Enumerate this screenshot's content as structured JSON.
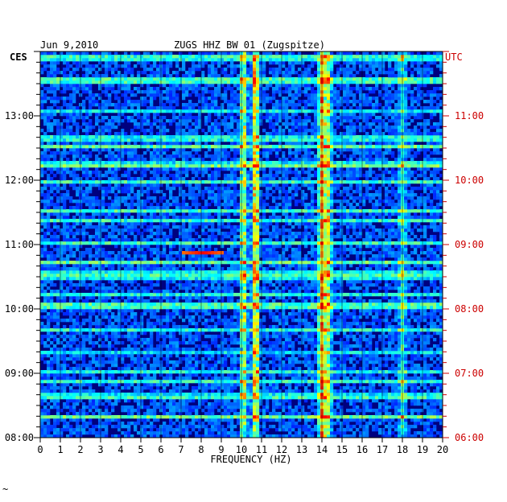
{
  "chart_data": {
    "type": "heatmap",
    "title": "ZUGS HHZ BW 01 (Zugspitze)",
    "date": "Jun 9,2010",
    "xlabel": "FREQUENCY (HZ)",
    "xlim": [
      0,
      20
    ],
    "x_ticks": [
      0,
      1,
      2,
      3,
      4,
      5,
      6,
      7,
      8,
      9,
      10,
      11,
      12,
      13,
      14,
      15,
      16,
      17,
      18,
      19,
      20
    ],
    "left_axis": {
      "label": "CES",
      "ticks": [
        {
          "t": 0,
          "label": "08:00"
        },
        {
          "t": 60,
          "label": "09:00"
        },
        {
          "t": 120,
          "label": "10:00"
        },
        {
          "t": 180,
          "label": "11:00"
        },
        {
          "t": 240,
          "label": "12:00"
        },
        {
          "t": 300,
          "label": "13:00"
        }
      ]
    },
    "right_axis": {
      "label": "UTC",
      "ticks": [
        {
          "t": 0,
          "label": "06:00"
        },
        {
          "t": 60,
          "label": "07:00"
        },
        {
          "t": 120,
          "label": "08:00"
        },
        {
          "t": 180,
          "label": "09:00"
        },
        {
          "t": 240,
          "label": "10:00"
        },
        {
          "t": 300,
          "label": "11:00"
        }
      ]
    },
    "time_range_minutes": [
      0,
      360
    ],
    "minor_tick_every_minutes": 10,
    "colormap": [
      "#00007f",
      "#0000ff",
      "#007fff",
      "#00ffff",
      "#7fff7f",
      "#ffff00",
      "#ff7f00",
      "#ff0000"
    ],
    "energy_bands_hz": [
      {
        "f": 10.1,
        "level": 0.6
      },
      {
        "f": 10.7,
        "level": 0.75
      },
      {
        "f": 14.0,
        "level": 0.7
      },
      {
        "f": 14.3,
        "level": 0.55
      },
      {
        "f": 18.0,
        "level": 0.3
      }
    ],
    "events": [
      {
        "t_minutes": 171,
        "f_from_hz": 7.1,
        "f_to_hz": 9.2,
        "peak_hz": 8.1,
        "level": 1.0
      },
      {
        "t_minutes": 276,
        "f_from_hz": 0.0,
        "f_to_hz": 20.0,
        "level": 0.55
      }
    ]
  },
  "colors": {
    "axis": "#000000",
    "left_labels": "#000000",
    "right_labels": "#cc0000"
  },
  "footer_mark": "~"
}
